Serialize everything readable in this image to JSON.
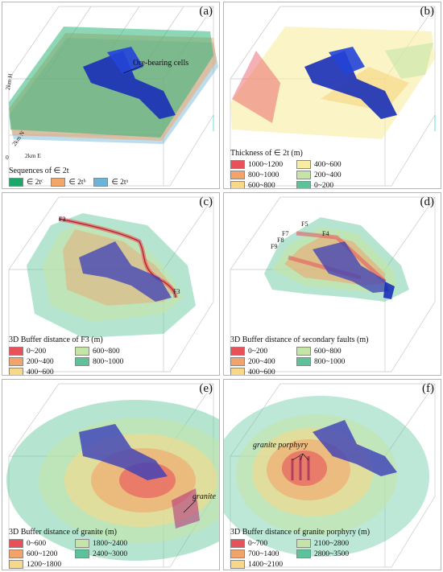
{
  "panels": {
    "a": {
      "label": "(a)",
      "annotation": "Ore-bearing cells",
      "axes": {
        "h": "2km H",
        "n": "2km N",
        "e": "2km E",
        "origin": "0"
      },
      "legend_title": "Sequences of ∈ 2t",
      "items": [
        {
          "label": "∈ 2tᶜ",
          "color": "#1aa86a"
        },
        {
          "label": "∈ 2tᵇ",
          "color": "#f2a66a"
        },
        {
          "label": "∈ 2tᵃ",
          "color": "#6bb4d8"
        }
      ]
    },
    "b": {
      "label": "(b)",
      "legend_title": "Thickness of ∈ 2t (m)",
      "items": [
        {
          "label": "1000~1200",
          "color": "#e8505a"
        },
        {
          "label": "400~600",
          "color": "#f7eda0"
        },
        {
          "label": "800~1000",
          "color": "#f2a36a"
        },
        {
          "label": "200~400",
          "color": "#c4e5a6"
        },
        {
          "label": "600~800",
          "color": "#f7d889"
        },
        {
          "label": "0~200",
          "color": "#5bc39a"
        }
      ]
    },
    "c": {
      "label": "(c)",
      "faults": [
        "F3",
        "F3"
      ],
      "legend_title": "3D Buffer distance of F3 (m)",
      "items": [
        {
          "label": "0~200",
          "color": "#e8505a"
        },
        {
          "label": "600~800",
          "color": "#c4e5a6"
        },
        {
          "label": "200~400",
          "color": "#f2a36a"
        },
        {
          "label": "800~1000",
          "color": "#5bc39a"
        },
        {
          "label": "400~600",
          "color": "#f7d889"
        }
      ]
    },
    "d": {
      "label": "(d)",
      "faults": [
        "F5",
        "F4",
        "F7",
        "F8",
        "F9"
      ],
      "legend_title": "3D Buffer distance of secondary faults (m)",
      "items": [
        {
          "label": "0~200",
          "color": "#e8505a"
        },
        {
          "label": "600~800",
          "color": "#c4e5a6"
        },
        {
          "label": "200~400",
          "color": "#f2a36a"
        },
        {
          "label": "800~1000",
          "color": "#5bc39a"
        },
        {
          "label": "400~600",
          "color": "#f7d889"
        }
      ]
    },
    "e": {
      "label": "(e)",
      "annotation": "granite",
      "legend_title": "3D Buffer distance of granite (m)",
      "items": [
        {
          "label": "0~600",
          "color": "#e8505a"
        },
        {
          "label": "1800~2400",
          "color": "#c4e5a6"
        },
        {
          "label": "600~1200",
          "color": "#f2a36a"
        },
        {
          "label": "2400~3000",
          "color": "#5bc39a"
        },
        {
          "label": "1200~1800",
          "color": "#f7d889"
        }
      ]
    },
    "f": {
      "label": "(f)",
      "annotation": "granite porphyry",
      "legend_title": "3D Buffer distance of granite porphyry (m)",
      "items": [
        {
          "label": "0~700",
          "color": "#e8505a"
        },
        {
          "label": "2100~2800",
          "color": "#c4e5a6"
        },
        {
          "label": "700~1400",
          "color": "#f2a36a"
        },
        {
          "label": "2800~3500",
          "color": "#5bc39a"
        },
        {
          "label": "1400~2100",
          "color": "#f7d889"
        }
      ]
    }
  }
}
